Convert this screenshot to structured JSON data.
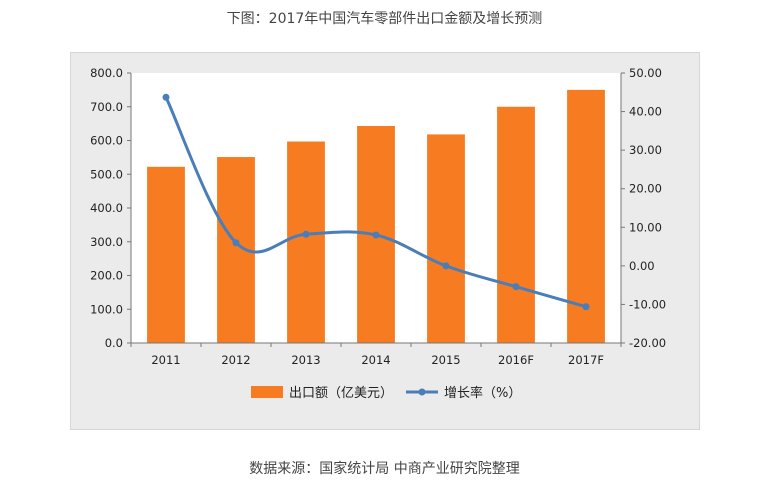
{
  "title": "下图：2017年中国汽车零部件出口金额及增长预测",
  "source": "数据来源：国家统计局 中商产业研究院整理",
  "colors": {
    "bar": "#f77b21",
    "line": "#4a7ebb",
    "plot_bg": "#ffffff",
    "frame_bg": "#ebebeb"
  },
  "chart_data": {
    "type": "bar",
    "categories": [
      "2011",
      "2012",
      "2013",
      "2014",
      "2015",
      "2016F",
      "2017F"
    ],
    "series": [
      {
        "name": "出口额（亿美元）",
        "type": "bar",
        "axis": "left",
        "values": [
          522,
          551,
          597,
          643,
          618,
          700,
          750
        ]
      },
      {
        "name": "增长率（%）",
        "type": "line",
        "axis": "right",
        "values": [
          43.7,
          6.0,
          8.2,
          8.0,
          0.0,
          -5.4,
          -10.6
        ]
      }
    ],
    "y_left": {
      "lim": [
        0,
        800
      ],
      "ticks": [
        "0.0",
        "100.0",
        "200.0",
        "300.0",
        "400.0",
        "500.0",
        "600.0",
        "700.0",
        "800.0"
      ]
    },
    "y_right": {
      "lim": [
        -20,
        50
      ],
      "ticks": [
        "-20.00",
        "-10.00",
        "0.00",
        "10.00",
        "20.00",
        "30.00",
        "40.00",
        "50.00"
      ]
    },
    "grid": false,
    "legend": "bottom"
  }
}
